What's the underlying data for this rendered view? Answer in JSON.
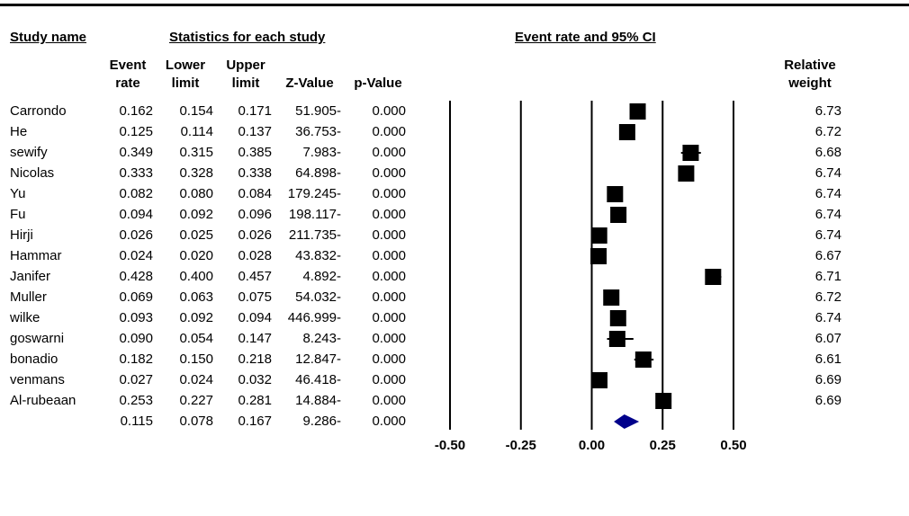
{
  "headers": {
    "study_name": "Study name",
    "statistics": "Statistics for each study",
    "plot_title": "Event rate and 95% CI"
  },
  "columns": {
    "event_rate": [
      "Event",
      "rate"
    ],
    "lower_limit": [
      "Lower",
      "limit"
    ],
    "upper_limit": [
      "Upper",
      "limit"
    ],
    "z_value": "Z-Value",
    "p_value": "p-Value",
    "relative_weight": [
      "Relative",
      "weight"
    ]
  },
  "chart_data": {
    "type": "forest",
    "x_ticks": [
      "-0.50",
      "-0.25",
      "0.00",
      "0.25",
      "0.50"
    ],
    "x_tick_values": [
      -0.5,
      -0.25,
      0.0,
      0.25,
      0.5
    ],
    "xlim": [
      -0.5,
      0.5
    ],
    "studies": [
      {
        "name": "Carrondo",
        "event_rate": "0.162",
        "lower": "0.154",
        "upper": "0.171",
        "z": "51.905-",
        "p": "0.000",
        "weight": "6.73"
      },
      {
        "name": "He",
        "event_rate": "0.125",
        "lower": "0.114",
        "upper": "0.137",
        "z": "36.753-",
        "p": "0.000",
        "weight": "6.72"
      },
      {
        "name": "sewify",
        "event_rate": "0.349",
        "lower": "0.315",
        "upper": "0.385",
        "z": "7.983-",
        "p": "0.000",
        "weight": "6.68"
      },
      {
        "name": "Nicolas",
        "event_rate": "0.333",
        "lower": "0.328",
        "upper": "0.338",
        "z": "64.898-",
        "p": "0.000",
        "weight": "6.74"
      },
      {
        "name": "Yu",
        "event_rate": "0.082",
        "lower": "0.080",
        "upper": "0.084",
        "z": "179.245-",
        "p": "0.000",
        "weight": "6.74"
      },
      {
        "name": "Fu",
        "event_rate": "0.094",
        "lower": "0.092",
        "upper": "0.096",
        "z": "198.117-",
        "p": "0.000",
        "weight": "6.74"
      },
      {
        "name": "Hirji",
        "event_rate": "0.026",
        "lower": "0.025",
        "upper": "0.026",
        "z": "211.735-",
        "p": "0.000",
        "weight": "6.74"
      },
      {
        "name": "Hammar",
        "event_rate": "0.024",
        "lower": "0.020",
        "upper": "0.028",
        "z": "43.832-",
        "p": "0.000",
        "weight": "6.67"
      },
      {
        "name": "Janifer",
        "event_rate": "0.428",
        "lower": "0.400",
        "upper": "0.457",
        "z": "4.892-",
        "p": "0.000",
        "weight": "6.71"
      },
      {
        "name": "Muller",
        "event_rate": "0.069",
        "lower": "0.063",
        "upper": "0.075",
        "z": "54.032-",
        "p": "0.000",
        "weight": "6.72"
      },
      {
        "name": "wilke",
        "event_rate": "0.093",
        "lower": "0.092",
        "upper": "0.094",
        "z": "446.999-",
        "p": "0.000",
        "weight": "6.74"
      },
      {
        "name": "goswarni",
        "event_rate": "0.090",
        "lower": "0.054",
        "upper": "0.147",
        "z": "8.243-",
        "p": "0.000",
        "weight": "6.07"
      },
      {
        "name": "bonadio",
        "event_rate": "0.182",
        "lower": "0.150",
        "upper": "0.218",
        "z": "12.847-",
        "p": "0.000",
        "weight": "6.61"
      },
      {
        "name": "venmans",
        "event_rate": "0.027",
        "lower": "0.024",
        "upper": "0.032",
        "z": "46.418-",
        "p": "0.000",
        "weight": "6.69"
      },
      {
        "name": "Al-rubeaan",
        "event_rate": "0.253",
        "lower": "0.227",
        "upper": "0.281",
        "z": "14.884-",
        "p": "0.000",
        "weight": "6.69"
      }
    ],
    "summary": {
      "event_rate": "0.115",
      "lower": "0.078",
      "upper": "0.167",
      "z": "9.286-",
      "p": "0.000"
    },
    "colors": {
      "marker": "#000000",
      "summary_diamond": "#00008b"
    }
  }
}
